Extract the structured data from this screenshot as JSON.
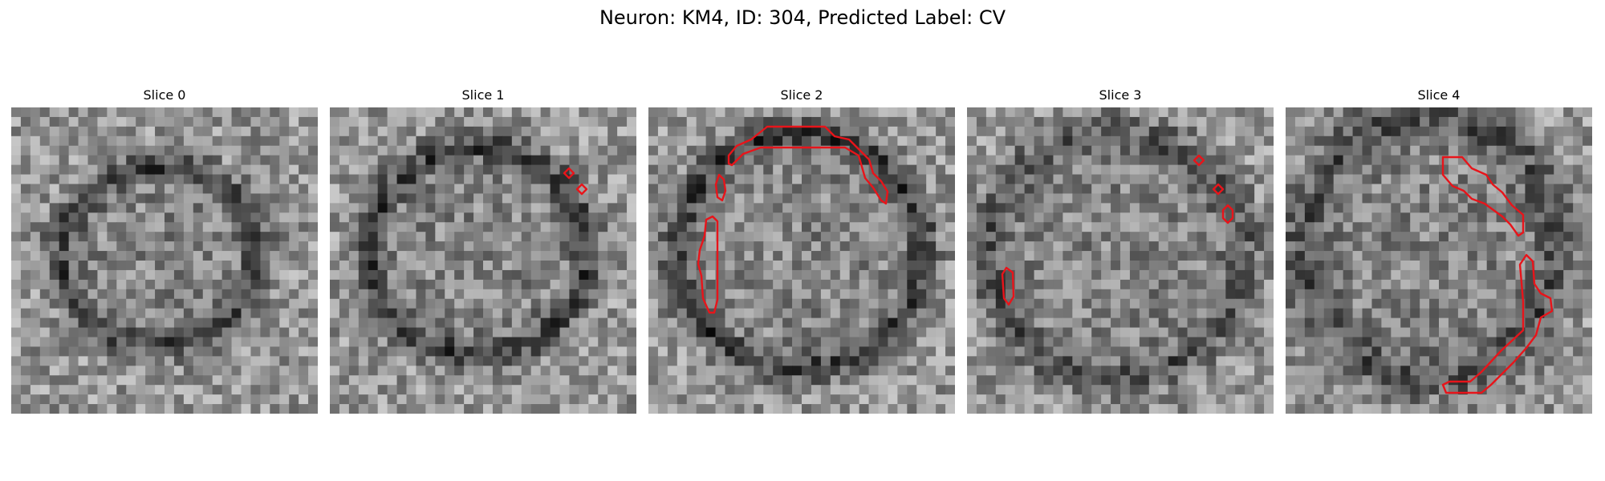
{
  "figure": {
    "title": "Neuron: KM4, ID: 304, Predicted Label: CV"
  },
  "panels": [
    {
      "title": "Slice 0"
    },
    {
      "title": "Slice 1"
    },
    {
      "title": "Slice 2"
    },
    {
      "title": "Slice 3"
    },
    {
      "title": "Slice 4"
    }
  ],
  "colors": {
    "contour": "#e8141a",
    "background": "#ffffff"
  }
}
